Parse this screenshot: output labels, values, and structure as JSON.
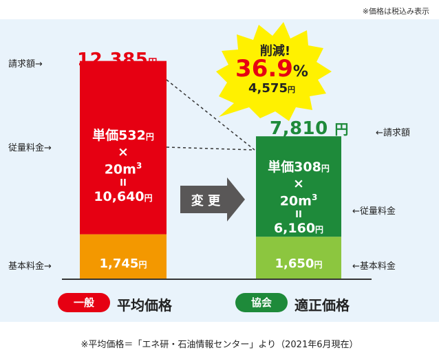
{
  "note_top": "※価格は税込み表示",
  "chart_data": {
    "type": "bar",
    "categories": [
      "平均価格",
      "適正価格"
    ],
    "series": [
      {
        "name": "基本料金",
        "values": [
          1745,
          1650
        ]
      },
      {
        "name": "従量料金",
        "values": [
          10640,
          6160
        ]
      }
    ],
    "totals": [
      12385,
      7810
    ],
    "unit_prices": [
      532,
      308
    ],
    "volume": "20m³",
    "reduction_percent": 36.9,
    "reduction_amount": 4575
  },
  "left": {
    "total_label": "請求額→",
    "total_value": "12,385",
    "usage_label": "従量料金→",
    "base_label": "基本料金→",
    "unit_price_line": "単価532",
    "times": "×",
    "volume": "20m",
    "volume_sup": "3",
    "equals": "II",
    "usage_value": "10,640",
    "base_value": "1,745",
    "pill": "一般",
    "legend": "平均価格",
    "color": "#e60012",
    "base_color": "#f39800"
  },
  "right": {
    "total_value": "7,810",
    "total_label": "←請求額",
    "usage_label": "←従量料金",
    "base_label": "←基本料金",
    "unit_price_line": "単価308",
    "times": "×",
    "volume": "20m",
    "volume_sup": "3",
    "equals": "II",
    "usage_value": "6,160",
    "base_value": "1,650",
    "pill": "協会",
    "legend": "適正価格",
    "color": "#1e8a3a",
    "base_color": "#8cc63f"
  },
  "yen": "円",
  "arrow_label": "変 更",
  "burst": {
    "title": "削減!",
    "percent": "36.9",
    "percent_sign": "%",
    "amount": "4,575",
    "color": "#fff100"
  },
  "bottom_note": "※平均価格＝「エネ研・石油情報センター」より（2021年6月現在）"
}
